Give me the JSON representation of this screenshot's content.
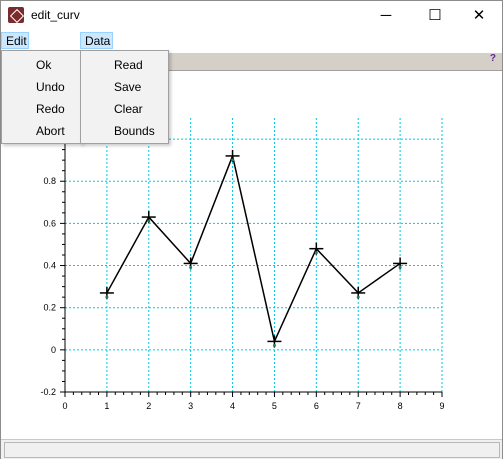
{
  "window": {
    "title": "edit_curv",
    "minimize_glyph": "─",
    "maximize_glyph": "☐",
    "close_glyph": "✕",
    "icon": "scilab-app-icon"
  },
  "menubar": {
    "edit": "Edit",
    "data": "Data"
  },
  "edit_menu": [
    "Ok",
    "Undo",
    "Redo",
    "Abort"
  ],
  "data_menu": [
    "Read",
    "Save",
    "Clear",
    "Bounds"
  ],
  "toolbar": {
    "help": "?"
  },
  "chart_data": {
    "type": "line",
    "x": [
      1,
      2,
      3,
      4,
      5,
      6,
      7,
      8
    ],
    "y": [
      0.27,
      0.63,
      0.41,
      0.92,
      0.04,
      0.48,
      0.27,
      0.41
    ],
    "xlim": [
      0,
      9
    ],
    "ylim": [
      -0.2,
      1.1
    ],
    "xticks": [
      "0",
      "1",
      "2",
      "3",
      "4",
      "5",
      "6",
      "7",
      "8",
      "9"
    ],
    "yticks": [
      "-0.2",
      "0",
      "0.2",
      "0.4",
      "0.6",
      "0.8",
      "1"
    ],
    "grid": true,
    "grid_color": "#00c8e0",
    "line_color": "#000000",
    "marker": "plus"
  }
}
